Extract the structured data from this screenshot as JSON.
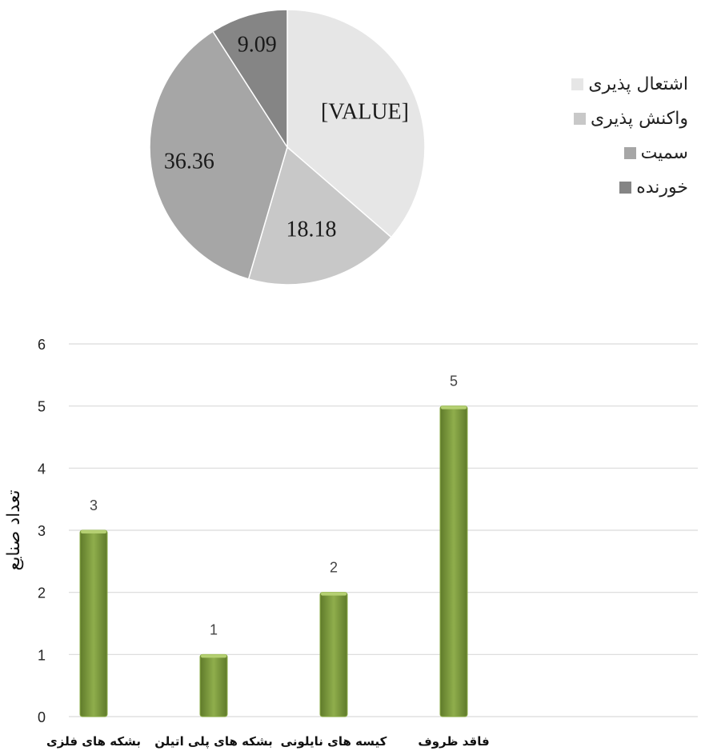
{
  "chart_data": [
    {
      "type": "pie",
      "categories": [
        "اشتعال پذیری",
        "واکنش پذیری",
        "سمیت",
        "خورنده"
      ],
      "values": [
        36.36,
        18.18,
        36.36,
        9.09
      ],
      "data_labels": [
        "[VALUE]",
        "18.18",
        "36.36",
        "9.09"
      ],
      "colors": [
        "#e6e6e6",
        "#c8c8c8",
        "#a6a6a6",
        "#858585"
      ],
      "legend_position": "right",
      "legend_prefix": ""
    },
    {
      "type": "bar",
      "categories": [
        "بشکه های فلزی",
        "بشکه های پلی اتیلن",
        "کیسه های نایلونی",
        "فاقد ظروف"
      ],
      "values": [
        3,
        1,
        2,
        5
      ],
      "ylabel": "تعداد صنایع",
      "ylim": [
        0,
        6
      ],
      "yticks": [
        0,
        1,
        2,
        3,
        4,
        5,
        6
      ],
      "grid": true,
      "bar_color": "#77933c",
      "data_labels": true
    }
  ]
}
